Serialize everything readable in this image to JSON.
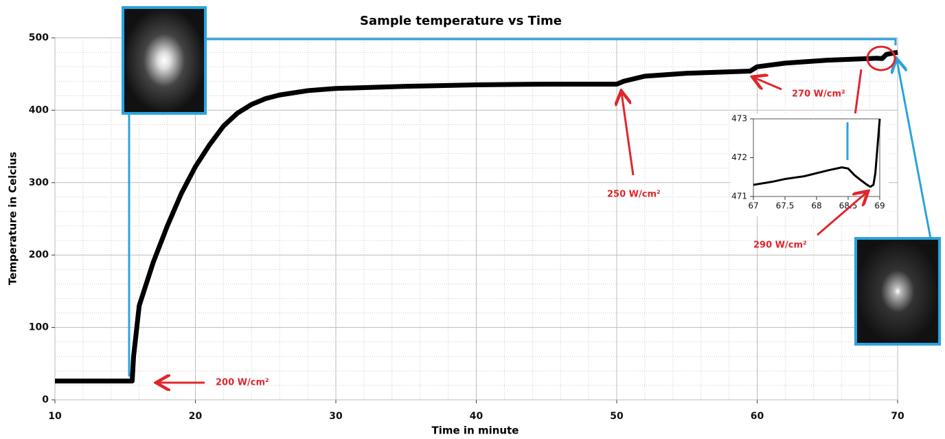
{
  "chart_data": [
    {
      "type": "line",
      "title": "Sample temperature vs Time",
      "xlabel": "Time in minute",
      "ylabel": "Temperature in Celcius",
      "xlim": [
        10,
        70
      ],
      "ylim": [
        0,
        500
      ],
      "xticks": [
        10,
        20,
        30,
        40,
        50,
        60,
        70
      ],
      "yticks": [
        0,
        100,
        200,
        300,
        400,
        500
      ],
      "grid": true,
      "series": [
        {
          "color": "#000000",
          "x": [
            10,
            15.5,
            15.6,
            16,
            17,
            18,
            19,
            20,
            21,
            22,
            23,
            24,
            25,
            26,
            28,
            30,
            35,
            40,
            45,
            50,
            50.5,
            52,
            55,
            59.5,
            60,
            62,
            65,
            68.5,
            68.9,
            69.2,
            70
          ],
          "values": [
            26,
            26,
            60,
            130,
            190,
            240,
            285,
            322,
            352,
            378,
            396,
            408,
            416,
            421,
            427,
            430,
            433,
            435,
            436,
            436,
            440,
            447,
            451,
            454,
            460,
            465,
            469,
            471.8,
            471.3,
            477,
            480
          ]
        }
      ],
      "annotations": [
        "200 W/cm²",
        "250 W/cm²",
        "270 W/cm²",
        "290 W/cm²"
      ]
    },
    {
      "type": "line",
      "xlim": [
        67,
        69
      ],
      "ylim": [
        471,
        473
      ],
      "xticks": [
        67,
        67.5,
        68,
        68.5,
        69
      ],
      "yticks": [
        471,
        472,
        473
      ],
      "grid": false,
      "series": [
        {
          "color": "#000000",
          "x": [
            67,
            67.3,
            67.5,
            67.8,
            68,
            68.2,
            68.4,
            68.5,
            68.6,
            68.7,
            68.8,
            68.85,
            68.9,
            68.93,
            69
          ],
          "values": [
            471.3,
            471.38,
            471.45,
            471.52,
            471.6,
            471.68,
            471.75,
            471.72,
            471.55,
            471.42,
            471.3,
            471.25,
            471.3,
            471.6,
            473
          ]
        }
      ]
    }
  ]
}
